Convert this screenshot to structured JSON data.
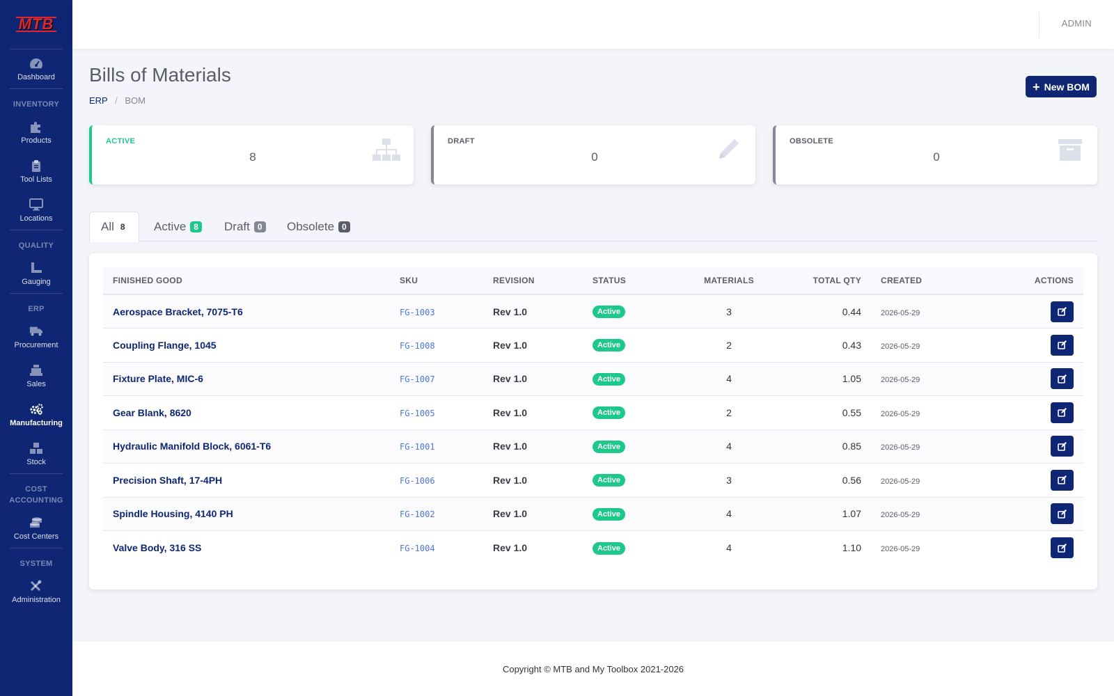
{
  "sidebar": {
    "logo": "MTB",
    "items": {
      "dashboard": "Dashboard",
      "products": "Products",
      "tool_lists": "Tool Lists",
      "locations": "Locations",
      "gauging": "Gauging",
      "procurement": "Procurement",
      "sales": "Sales",
      "manufacturing": "Manufacturing",
      "stock": "Stock",
      "cost_centers": "Cost Centers",
      "administration": "Administration"
    },
    "headings": {
      "inventory": "INVENTORY",
      "quality": "QUALITY",
      "erp": "ERP",
      "cost_accounting": "COST ACCOUNTING",
      "system": "SYSTEM"
    },
    "active_item": "Manufacturing"
  },
  "topbar": {
    "user": "ADMIN"
  },
  "page": {
    "title": "Bills of Materials",
    "breadcrumb": {
      "root": "ERP",
      "current": "BOM"
    },
    "new_button": "New BOM"
  },
  "stats": {
    "active": {
      "label": "ACTIVE",
      "value": "8",
      "icon": "sitemap-icon",
      "color": "#1cc88a"
    },
    "draft": {
      "label": "DRAFT",
      "value": "0",
      "icon": "pencil-icon"
    },
    "obsolete": {
      "label": "OBSOLETE",
      "value": "0",
      "icon": "archive-icon"
    }
  },
  "tabs": {
    "all": {
      "label": "All",
      "count": "8"
    },
    "active": {
      "label": "Active",
      "count": "8"
    },
    "draft": {
      "label": "Draft",
      "count": "0"
    },
    "obsolete": {
      "label": "Obsolete",
      "count": "0"
    }
  },
  "table": {
    "headers": {
      "finished_good": "FINISHED GOOD",
      "sku": "SKU",
      "revision": "REVISION",
      "status": "STATUS",
      "materials": "MATERIALS",
      "total_qty": "TOTAL QTY",
      "created": "CREATED",
      "actions": "ACTIONS"
    },
    "rows": [
      {
        "name": "Aerospace Bracket, 7075-T6",
        "sku": "FG-1003",
        "revision": "Rev 1.0",
        "status": "Active",
        "materials": "3",
        "total_qty": "0.44",
        "created": "2026-05-29"
      },
      {
        "name": "Coupling Flange, 1045",
        "sku": "FG-1008",
        "revision": "Rev 1.0",
        "status": "Active",
        "materials": "2",
        "total_qty": "0.43",
        "created": "2026-05-29"
      },
      {
        "name": "Fixture Plate, MIC-6",
        "sku": "FG-1007",
        "revision": "Rev 1.0",
        "status": "Active",
        "materials": "4",
        "total_qty": "1.05",
        "created": "2026-05-29"
      },
      {
        "name": "Gear Blank, 8620",
        "sku": "FG-1005",
        "revision": "Rev 1.0",
        "status": "Active",
        "materials": "2",
        "total_qty": "0.55",
        "created": "2026-05-29"
      },
      {
        "name": "Hydraulic Manifold Block, 6061-T6",
        "sku": "FG-1001",
        "revision": "Rev 1.0",
        "status": "Active",
        "materials": "4",
        "total_qty": "0.85",
        "created": "2026-05-29"
      },
      {
        "name": "Precision Shaft, 17-4PH",
        "sku": "FG-1006",
        "revision": "Rev 1.0",
        "status": "Active",
        "materials": "3",
        "total_qty": "0.56",
        "created": "2026-05-29"
      },
      {
        "name": "Spindle Housing, 4140 PH",
        "sku": "FG-1002",
        "revision": "Rev 1.0",
        "status": "Active",
        "materials": "4",
        "total_qty": "1.07",
        "created": "2026-05-29"
      },
      {
        "name": "Valve Body, 316 SS",
        "sku": "FG-1004",
        "revision": "Rev 1.0",
        "status": "Active",
        "materials": "4",
        "total_qty": "1.10",
        "created": "2026-05-29"
      }
    ]
  },
  "footer": {
    "copyright": "Copyright © MTB and My Toolbox 2021-2026"
  },
  "colors": {
    "brand": "#0e2673",
    "success": "#1cc88a",
    "secondary": "#858796",
    "dark": "#5a5c69"
  }
}
